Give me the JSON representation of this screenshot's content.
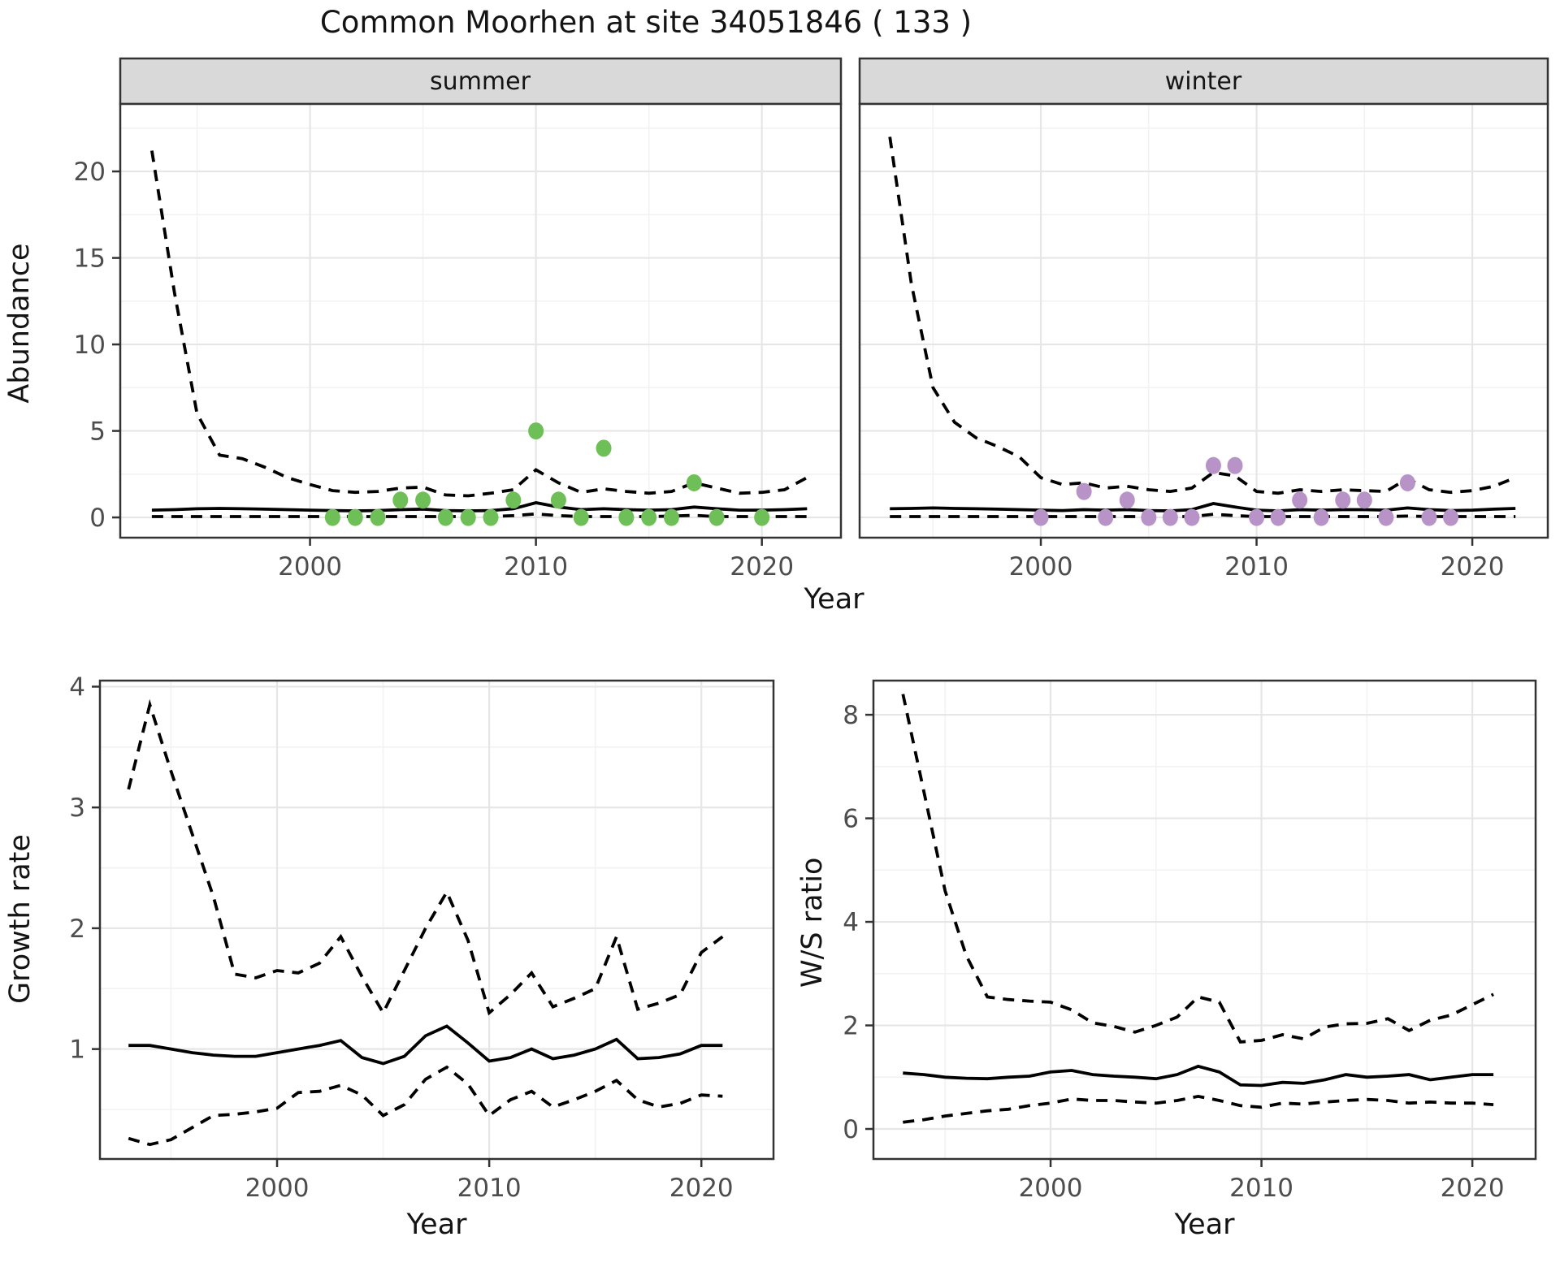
{
  "title": "Common Moorhen at site 34051846 ( 133 )",
  "labels": {
    "x_axis": "Year",
    "y_abundance": "Abundance",
    "y_growth": "Growth rate",
    "y_ws": "W/S ratio"
  },
  "facets": {
    "summer": "summer",
    "winter": "winter"
  },
  "colors": {
    "summer_points": "#6FBF59",
    "winter_points": "#B793C8",
    "line": "#000000",
    "strip_bg": "#D9D9D9",
    "panel_border": "#333333",
    "grid_major": "#E6E6E6",
    "grid_minor": "#F2F2F2",
    "axis_text": "#4D4D4D"
  },
  "chart_data": [
    {
      "type": "line",
      "facet": "summer",
      "ylabel": "Abundance",
      "xlabel": "Year",
      "x_ticks": [
        2000,
        2010,
        2020
      ],
      "x_minor": [
        1995,
        2005,
        2015
      ],
      "y_ticks": [
        0,
        5,
        10,
        15,
        20
      ],
      "y_minor": [
        2.5,
        7.5,
        12.5,
        17.5,
        22.5
      ],
      "xlim": [
        1991.6,
        2023.5
      ],
      "ylim": [
        -1.17,
        23.9
      ],
      "years": [
        1993,
        1994,
        1995,
        1996,
        1997,
        1998,
        1999,
        2000,
        2001,
        2002,
        2003,
        2004,
        2005,
        2006,
        2007,
        2008,
        2009,
        2010,
        2011,
        2012,
        2013,
        2014,
        2015,
        2016,
        2017,
        2018,
        2019,
        2020,
        2021,
        2022
      ],
      "series": [
        {
          "name": "ci_upper",
          "style": "dashed",
          "values": [
            21.2,
            13,
            6,
            3.6,
            3.4,
            2.9,
            2.3,
            1.9,
            1.55,
            1.45,
            1.5,
            1.7,
            1.75,
            1.3,
            1.25,
            1.4,
            1.6,
            2.75,
            2.0,
            1.45,
            1.65,
            1.5,
            1.4,
            1.5,
            2.0,
            1.7,
            1.4,
            1.45,
            1.6,
            2.3
          ]
        },
        {
          "name": "median",
          "style": "solid",
          "values": [
            0.42,
            0.45,
            0.5,
            0.52,
            0.5,
            0.48,
            0.45,
            0.42,
            0.4,
            0.38,
            0.4,
            0.45,
            0.48,
            0.4,
            0.38,
            0.4,
            0.5,
            0.85,
            0.6,
            0.45,
            0.5,
            0.45,
            0.42,
            0.45,
            0.6,
            0.5,
            0.42,
            0.42,
            0.45,
            0.5
          ]
        },
        {
          "name": "ci_lower",
          "style": "dashed",
          "values": [
            0.05,
            0.05,
            0.05,
            0.05,
            0.05,
            0.05,
            0.05,
            0.05,
            0.05,
            0.05,
            0.05,
            0.05,
            0.05,
            0.05,
            0.05,
            0.05,
            0.1,
            0.2,
            0.1,
            0.05,
            0.05,
            0.05,
            0.05,
            0.08,
            0.12,
            0.05,
            0.05,
            0.05,
            0.05,
            0.05
          ]
        }
      ],
      "points": {
        "name": "observed_counts",
        "color": "#6FBF59",
        "data": [
          [
            2001,
            0
          ],
          [
            2002,
            0
          ],
          [
            2003,
            0
          ],
          [
            2004,
            1
          ],
          [
            2005,
            1
          ],
          [
            2006,
            0
          ],
          [
            2007,
            0
          ],
          [
            2008,
            0
          ],
          [
            2009,
            1
          ],
          [
            2010,
            5
          ],
          [
            2011,
            1
          ],
          [
            2012,
            0
          ],
          [
            2013,
            4
          ],
          [
            2014,
            0
          ],
          [
            2015,
            0
          ],
          [
            2016,
            0
          ],
          [
            2017,
            2
          ],
          [
            2018,
            0
          ],
          [
            2020,
            0
          ]
        ]
      }
    },
    {
      "type": "line",
      "facet": "winter",
      "ylabel": "Abundance",
      "xlabel": "Year",
      "x_ticks": [
        2000,
        2010,
        2020
      ],
      "x_minor": [
        1995,
        2005,
        2015
      ],
      "y_ticks": [
        0,
        5,
        10,
        15,
        20
      ],
      "y_minor": [
        2.5,
        7.5,
        12.5,
        17.5,
        22.5
      ],
      "xlim": [
        1991.6,
        2023.5
      ],
      "ylim": [
        -1.17,
        23.9
      ],
      "years": [
        1993,
        1994,
        1995,
        1996,
        1997,
        1998,
        1999,
        2000,
        2001,
        2002,
        2003,
        2004,
        2005,
        2006,
        2007,
        2008,
        2009,
        2010,
        2011,
        2012,
        2013,
        2014,
        2015,
        2016,
        2017,
        2018,
        2019,
        2020,
        2021,
        2022
      ],
      "series": [
        {
          "name": "ci_upper",
          "style": "dashed",
          "values": [
            22,
            13.5,
            7.5,
            5.5,
            4.6,
            4.1,
            3.5,
            2.3,
            1.9,
            2.0,
            1.7,
            1.8,
            1.6,
            1.5,
            1.7,
            2.6,
            2.4,
            1.5,
            1.4,
            1.6,
            1.5,
            1.6,
            1.55,
            1.5,
            2.25,
            1.6,
            1.45,
            1.55,
            1.8,
            2.3
          ]
        },
        {
          "name": "median",
          "style": "solid",
          "values": [
            0.5,
            0.52,
            0.55,
            0.52,
            0.5,
            0.48,
            0.45,
            0.42,
            0.4,
            0.45,
            0.42,
            0.45,
            0.4,
            0.38,
            0.45,
            0.8,
            0.6,
            0.42,
            0.38,
            0.45,
            0.42,
            0.45,
            0.45,
            0.42,
            0.55,
            0.45,
            0.4,
            0.42,
            0.48,
            0.52
          ]
        },
        {
          "name": "ci_lower",
          "style": "dashed",
          "values": [
            0.05,
            0.05,
            0.05,
            0.05,
            0.05,
            0.05,
            0.05,
            0.05,
            0.05,
            0.05,
            0.05,
            0.05,
            0.05,
            0.05,
            0.05,
            0.18,
            0.1,
            0.05,
            0.05,
            0.05,
            0.05,
            0.05,
            0.05,
            0.05,
            0.08,
            0.05,
            0.05,
            0.05,
            0.05,
            0.05
          ]
        }
      ],
      "points": {
        "name": "observed_counts",
        "color": "#B793C8",
        "data": [
          [
            2000,
            0
          ],
          [
            2002,
            1.5
          ],
          [
            2003,
            0
          ],
          [
            2004,
            1
          ],
          [
            2005,
            0
          ],
          [
            2006,
            0
          ],
          [
            2007,
            0
          ],
          [
            2008,
            3
          ],
          [
            2009,
            3
          ],
          [
            2010,
            0
          ],
          [
            2011,
            0
          ],
          [
            2012,
            1
          ],
          [
            2013,
            0
          ],
          [
            2014,
            1
          ],
          [
            2015,
            1
          ],
          [
            2016,
            0
          ],
          [
            2017,
            2
          ],
          [
            2018,
            0
          ],
          [
            2019,
            0
          ]
        ]
      }
    },
    {
      "type": "line",
      "facet": null,
      "ylabel": "Growth rate",
      "xlabel": "Year",
      "x_ticks": [
        2000,
        2010,
        2020
      ],
      "x_minor": [
        1995,
        2005,
        2015
      ],
      "y_ticks": [
        1,
        2,
        3,
        4
      ],
      "y_minor": [
        0.5,
        1.5,
        2.5,
        3.5
      ],
      "xlim": [
        1991.65,
        2023.4
      ],
      "ylim": [
        0.09,
        4.05
      ],
      "years": [
        1993,
        1994,
        1995,
        1996,
        1997,
        1998,
        1999,
        2000,
        2001,
        2002,
        2003,
        2004,
        2005,
        2006,
        2007,
        2008,
        2009,
        2010,
        2011,
        2012,
        2013,
        2014,
        2015,
        2016,
        2017,
        2018,
        2019,
        2020,
        2021
      ],
      "series": [
        {
          "name": "ci_upper",
          "style": "dashed",
          "values": [
            3.15,
            3.85,
            3.3,
            2.78,
            2.26,
            1.62,
            1.59,
            1.65,
            1.63,
            1.71,
            1.93,
            1.6,
            1.3,
            1.65,
            2.0,
            2.3,
            1.9,
            1.3,
            1.45,
            1.63,
            1.35,
            1.42,
            1.5,
            1.93,
            1.33,
            1.38,
            1.45,
            1.8,
            1.93
          ]
        },
        {
          "name": "median",
          "style": "solid",
          "values": [
            1.03,
            1.03,
            1.0,
            0.97,
            0.95,
            0.94,
            0.94,
            0.97,
            1.0,
            1.03,
            1.07,
            0.93,
            0.88,
            0.94,
            1.11,
            1.19,
            1.05,
            0.9,
            0.93,
            1.0,
            0.92,
            0.95,
            1.0,
            1.08,
            0.92,
            0.93,
            0.96,
            1.03,
            1.03
          ]
        },
        {
          "name": "ci_lower",
          "style": "dashed",
          "values": [
            0.26,
            0.21,
            0.25,
            0.35,
            0.45,
            0.46,
            0.48,
            0.51,
            0.64,
            0.65,
            0.7,
            0.62,
            0.45,
            0.54,
            0.75,
            0.85,
            0.71,
            0.45,
            0.58,
            0.65,
            0.52,
            0.58,
            0.65,
            0.74,
            0.58,
            0.52,
            0.55,
            0.62,
            0.61
          ]
        }
      ],
      "points": null
    },
    {
      "type": "line",
      "facet": null,
      "ylabel": "W/S ratio",
      "xlabel": "Year",
      "x_ticks": [
        2000,
        2010,
        2020
      ],
      "x_minor": [
        1995,
        2005,
        2015
      ],
      "y_ticks": [
        0,
        2,
        4,
        6,
        8
      ],
      "y_minor": [
        1,
        3,
        5,
        7
      ],
      "xlim": [
        1991.6,
        2023.0
      ],
      "ylim": [
        -0.58,
        8.66
      ],
      "years": [
        1993,
        1994,
        1995,
        1996,
        1997,
        1998,
        1999,
        2000,
        2001,
        2002,
        2003,
        2004,
        2005,
        2006,
        2007,
        2008,
        2009,
        2010,
        2011,
        2012,
        2013,
        2014,
        2015,
        2016,
        2017,
        2018,
        2019,
        2020,
        2021
      ],
      "series": [
        {
          "name": "ci_upper",
          "style": "dashed",
          "values": [
            8.4,
            6.5,
            4.6,
            3.35,
            2.55,
            2.5,
            2.47,
            2.45,
            2.3,
            2.05,
            1.98,
            1.87,
            2.0,
            2.16,
            2.55,
            2.45,
            1.68,
            1.71,
            1.82,
            1.74,
            1.97,
            2.03,
            2.04,
            2.13,
            1.9,
            2.1,
            2.2,
            2.4,
            2.6
          ]
        },
        {
          "name": "median",
          "style": "solid",
          "values": [
            1.08,
            1.05,
            1.0,
            0.98,
            0.97,
            1.0,
            1.02,
            1.1,
            1.13,
            1.05,
            1.02,
            1.0,
            0.97,
            1.05,
            1.21,
            1.1,
            0.85,
            0.84,
            0.9,
            0.88,
            0.95,
            1.05,
            1.0,
            1.02,
            1.05,
            0.95,
            1.0,
            1.05,
            1.05
          ]
        },
        {
          "name": "ci_lower",
          "style": "dashed",
          "values": [
            0.13,
            0.18,
            0.25,
            0.3,
            0.35,
            0.38,
            0.45,
            0.5,
            0.58,
            0.55,
            0.55,
            0.52,
            0.5,
            0.55,
            0.63,
            0.55,
            0.45,
            0.42,
            0.5,
            0.48,
            0.52,
            0.55,
            0.57,
            0.55,
            0.5,
            0.52,
            0.5,
            0.5,
            0.47
          ]
        }
      ],
      "points": null
    }
  ]
}
